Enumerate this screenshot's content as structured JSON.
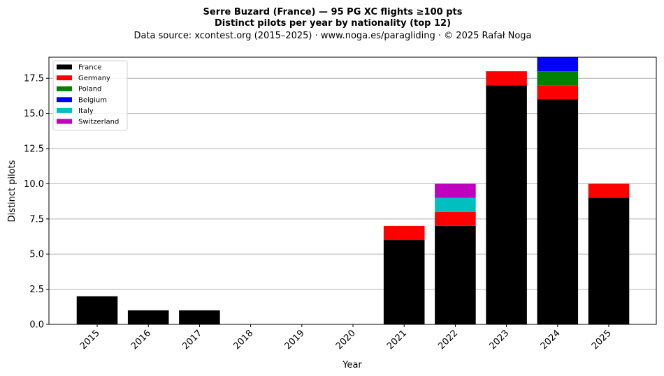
{
  "chart_data": {
    "type": "bar",
    "stacked": true,
    "title": "Serre Buzard (France)  —  95 PG XC flights ≥100 pts",
    "subtitle": "Distinct pilots per year by nationality (top 12)",
    "source_note": "Data source: xcontest.org (2015–2025)  ·  www.noga.es/paragliding  ·  © 2025 Rafał Noga",
    "xlabel": "Year",
    "ylabel": "Distinct pilots",
    "ylim": [
      0,
      19
    ],
    "yticks": [
      0,
      2.5,
      5,
      7.5,
      10,
      12.5,
      15,
      17.5
    ],
    "ytick_labels": [
      "0.0",
      "2.5",
      "5.0",
      "7.5",
      "10.0",
      "12.5",
      "15.0",
      "17.5"
    ],
    "grid": "horizontal",
    "legend_position": "top-left",
    "categories": [
      "2015",
      "2016",
      "2017",
      "2018",
      "2019",
      "2020",
      "2021",
      "2022",
      "2023",
      "2024",
      "2025"
    ],
    "series": [
      {
        "name": "France",
        "color": "#000000",
        "values": [
          2,
          1,
          1,
          0,
          0,
          0,
          6,
          7,
          17,
          16,
          9
        ]
      },
      {
        "name": "Germany",
        "color": "#ff0000",
        "values": [
          0,
          0,
          0,
          0,
          0,
          0,
          1,
          1,
          1,
          1,
          1
        ]
      },
      {
        "name": "Poland",
        "color": "#008000",
        "values": [
          0,
          0,
          0,
          0,
          0,
          0,
          0,
          0,
          0,
          1,
          0
        ]
      },
      {
        "name": "Belgium",
        "color": "#0000ff",
        "values": [
          0,
          0,
          0,
          0,
          0,
          0,
          0,
          0,
          0,
          1,
          0
        ]
      },
      {
        "name": "Italy",
        "color": "#00bfbf",
        "values": [
          0,
          0,
          0,
          0,
          0,
          0,
          0,
          1,
          0,
          0,
          0
        ]
      },
      {
        "name": "Switzerland",
        "color": "#bf00bf",
        "values": [
          0,
          0,
          0,
          0,
          0,
          0,
          0,
          1,
          0,
          0,
          0
        ]
      }
    ]
  }
}
